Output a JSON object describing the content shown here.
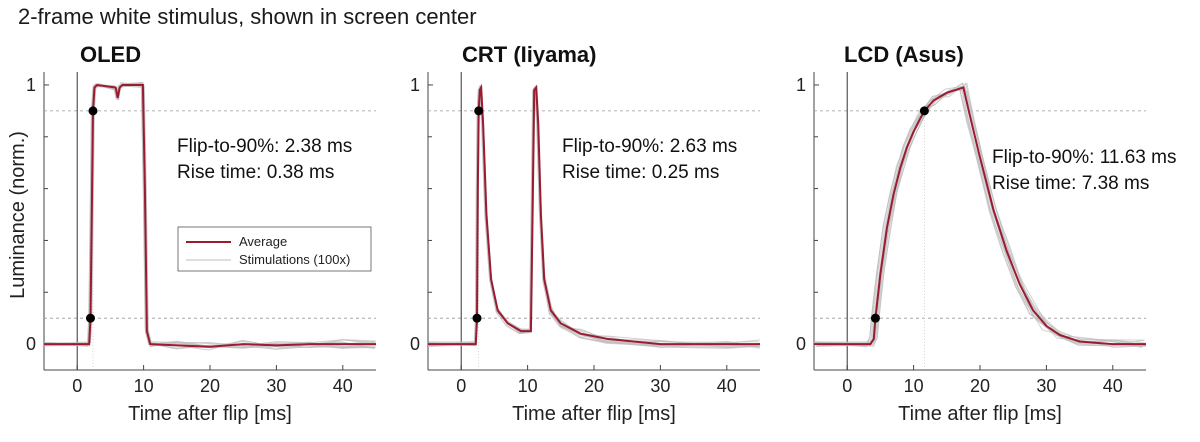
{
  "suptitle": "2-frame white stimulus, shown in screen center",
  "shared": {
    "xlabel": "Time after flip [ms]",
    "ylabel": "Luminance (norm.)",
    "xlim": [
      -5,
      45
    ],
    "ylim": [
      -0.1,
      1.05
    ],
    "x_ticks": [
      0,
      10,
      20,
      30,
      40
    ],
    "x_tick_labels": [
      "0",
      "10",
      "20",
      "30",
      "40"
    ],
    "y_tick_labels": [
      {
        "value": 0,
        "label": "0"
      },
      {
        "value": 1,
        "label": "1"
      }
    ],
    "y_minor_ticks": [
      0.2,
      0.4,
      0.6,
      0.8
    ],
    "threshold_lines": [
      0.1,
      0.9
    ],
    "colors": {
      "average": "#9b1b30",
      "stimulations": "#bdbdbd",
      "threshold": "#9a9a9a",
      "marker": "#000000",
      "vline": "#333333"
    }
  },
  "legend": {
    "average_label": "Average",
    "stimulations_label": "Stimulations (100x)"
  },
  "chart_data": [
    {
      "type": "line",
      "title": "OLED",
      "annotations": [
        "Flip-to-90%: 2.38 ms",
        "Rise time: 0.38 ms"
      ],
      "markers": [
        [
          2.0,
          0.1
        ],
        [
          2.38,
          0.9
        ]
      ],
      "dotted_vline": 2.38,
      "series": [
        {
          "name": "Average",
          "x": [
            -5,
            1.8,
            2.0,
            2.2,
            2.38,
            2.6,
            3.0,
            5.8,
            6.1,
            6.4,
            6.8,
            9.9,
            10.2,
            10.5,
            11.0,
            15,
            20,
            25,
            30,
            35,
            40,
            45
          ],
          "y": [
            0,
            0,
            0.1,
            0.5,
            0.9,
            0.99,
            1.0,
            0.99,
            0.95,
            0.99,
            1.0,
            1.0,
            0.6,
            0.05,
            0.0,
            -0.005,
            -0.01,
            0,
            -0.005,
            0,
            0,
            0
          ]
        }
      ]
    },
    {
      "type": "line",
      "title": "CRT (Iiyama)",
      "annotations": [
        "Flip-to-90%: 2.63 ms",
        "Rise time: 0.25 ms"
      ],
      "markers": [
        [
          2.38,
          0.1
        ],
        [
          2.63,
          0.9
        ]
      ],
      "dotted_vline": 2.63,
      "series": [
        {
          "name": "Average",
          "x": [
            -5,
            2.2,
            2.38,
            2.5,
            2.63,
            2.8,
            3.0,
            3.3,
            3.8,
            4.5,
            5.5,
            7,
            9,
            10.5,
            10.8,
            11.0,
            11.3,
            11.6,
            12.0,
            12.5,
            13.5,
            15,
            18,
            22,
            30,
            40,
            45
          ],
          "y": [
            0,
            0,
            0.1,
            0.6,
            0.9,
            0.98,
            0.99,
            0.85,
            0.5,
            0.25,
            0.13,
            0.08,
            0.05,
            0.05,
            0.6,
            0.98,
            0.99,
            0.85,
            0.5,
            0.25,
            0.13,
            0.08,
            0.04,
            0.02,
            0,
            0,
            0
          ]
        }
      ]
    },
    {
      "type": "line",
      "title": "LCD (Asus)",
      "annotations": [
        "Flip-to-90%: 11.63 ms",
        "Rise time: 7.38 ms"
      ],
      "markers": [
        [
          4.25,
          0.1
        ],
        [
          11.63,
          0.9
        ]
      ],
      "dotted_vline": 11.63,
      "series": [
        {
          "name": "Average",
          "x": [
            -5,
            3.5,
            4.0,
            4.25,
            5,
            6,
            7,
            8,
            9,
            10,
            11,
            11.63,
            13,
            15,
            17.5,
            18.5,
            20,
            22,
            24,
            26,
            28,
            30,
            32,
            35,
            40,
            45
          ],
          "y": [
            0,
            0,
            0.02,
            0.1,
            0.27,
            0.45,
            0.58,
            0.68,
            0.76,
            0.82,
            0.87,
            0.9,
            0.94,
            0.97,
            0.99,
            0.88,
            0.72,
            0.52,
            0.36,
            0.23,
            0.13,
            0.07,
            0.035,
            0.01,
            0,
            0
          ]
        }
      ]
    }
  ]
}
